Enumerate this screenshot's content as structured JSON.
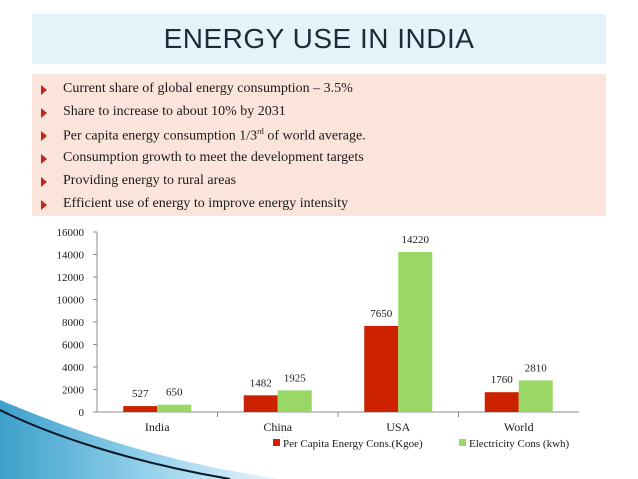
{
  "slide": {
    "title": "ENERGY USE IN INDIA",
    "bullets": [
      {
        "text": "Current share of global energy consumption – 3.5%"
      },
      {
        "text": "Share to increase to about 10% by 2031"
      },
      {
        "text": "Per capita energy consumption 1/3",
        "sup": "rd",
        "suffix": " of world average."
      },
      {
        "text": "Consumption growth to meet the development targets"
      },
      {
        "text": "Providing energy to rural areas"
      },
      {
        "text": "Efficient use of energy to improve energy intensity"
      }
    ]
  },
  "colors": {
    "accent_red": "#c0281f",
    "series1": "#cc2200",
    "series2": "#99d864",
    "title_bg": "#e4f3fa",
    "bullet_bg": "#fbe4db"
  },
  "chart_data": {
    "type": "bar",
    "categories": [
      "India",
      "China",
      "USA",
      "World"
    ],
    "series": [
      {
        "name": "Per Capita Energy Cons.(Kgoe)",
        "values": [
          527,
          1482,
          7650,
          1760
        ],
        "color": "#cc2200"
      },
      {
        "name": "Electricity Cons (kwh)",
        "values": [
          650,
          1925,
          14220,
          2810
        ],
        "color": "#99d864"
      }
    ],
    "ylim": [
      0,
      16000
    ],
    "yticks": [
      0,
      2000,
      4000,
      6000,
      8000,
      10000,
      12000,
      14000,
      16000
    ],
    "legend_position": "bottom-right",
    "grid": false
  }
}
